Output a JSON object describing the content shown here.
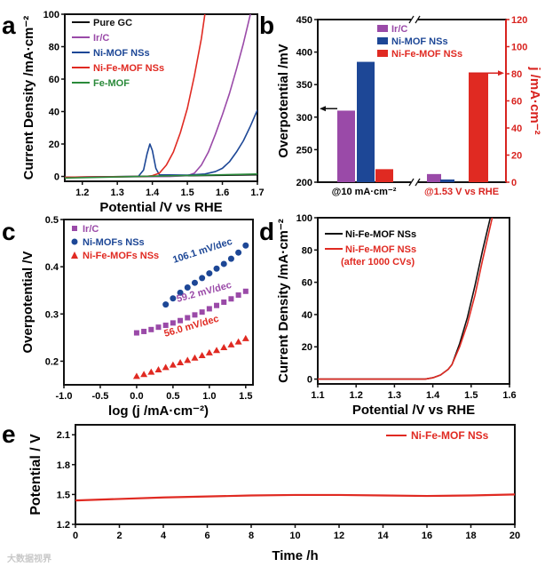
{
  "colors": {
    "black": "#111111",
    "irc": "#9a4aa8",
    "nimof": "#1d4796",
    "nife": "#e02a22",
    "femof": "#2a8a3a",
    "axis_red": "#d8231f"
  },
  "watermark": "大数据视界",
  "chart_data": [
    {
      "panel": "a",
      "type": "line",
      "xlabel": "Potential /V vs RHE",
      "ylabel": "Current Density /mA·cm⁻²",
      "xlim": [
        1.15,
        1.7
      ],
      "ylim": [
        -3,
        100
      ],
      "xticks": [
        1.2,
        1.3,
        1.4,
        1.5,
        1.6,
        1.7
      ],
      "yticks": [
        0,
        20,
        40,
        60,
        80,
        100
      ],
      "legend_position": "top-left",
      "series": [
        {
          "name": "Pure GC",
          "color": "#111111",
          "points": [
            [
              1.15,
              -0.5
            ],
            [
              1.7,
              1
            ]
          ]
        },
        {
          "name": "Ir/C",
          "color": "#9a4aa8",
          "points": [
            [
              1.15,
              -0.5
            ],
            [
              1.45,
              0
            ],
            [
              1.5,
              0.5
            ],
            [
              1.52,
              2
            ],
            [
              1.54,
              7
            ],
            [
              1.56,
              15
            ],
            [
              1.58,
              26
            ],
            [
              1.6,
              38
            ],
            [
              1.62,
              51
            ],
            [
              1.64,
              66
            ],
            [
              1.66,
              82
            ],
            [
              1.68,
              100
            ]
          ]
        },
        {
          "name": "Ni-MOF NSs",
          "color": "#1d4796",
          "points": [
            [
              1.15,
              -0.5
            ],
            [
              1.36,
              0
            ],
            [
              1.375,
              4
            ],
            [
              1.385,
              14
            ],
            [
              1.393,
              20
            ],
            [
              1.4,
              16
            ],
            [
              1.41,
              5
            ],
            [
              1.42,
              1
            ],
            [
              1.5,
              0.8
            ],
            [
              1.55,
              1.5
            ],
            [
              1.58,
              3
            ],
            [
              1.6,
              5
            ],
            [
              1.62,
              9
            ],
            [
              1.64,
              15
            ],
            [
              1.66,
              22
            ],
            [
              1.68,
              31
            ],
            [
              1.7,
              41
            ]
          ]
        },
        {
          "name": "Ni-Fe-MOF NSs",
          "color": "#e02a22",
          "points": [
            [
              1.15,
              -0.5
            ],
            [
              1.38,
              0
            ],
            [
              1.4,
              0.5
            ],
            [
              1.42,
              2
            ],
            [
              1.44,
              7
            ],
            [
              1.46,
              15
            ],
            [
              1.48,
              27
            ],
            [
              1.5,
              42
            ],
            [
              1.52,
              62
            ],
            [
              1.54,
              85
            ],
            [
              1.55,
              100
            ]
          ]
        },
        {
          "name": "Fe-MOF",
          "color": "#2a8a3a",
          "points": [
            [
              1.15,
              -1
            ],
            [
              1.7,
              1.5
            ]
          ]
        }
      ]
    },
    {
      "panel": "b",
      "type": "bar",
      "ylabel": "Overpotential /mV",
      "ylabel_right": "j /mA·cm⁻²",
      "ylim": [
        200,
        450
      ],
      "ylim_right": [
        0,
        120
      ],
      "yticks": [
        200,
        250,
        300,
        350,
        400,
        450
      ],
      "yticks_right": [
        0,
        20,
        40,
        60,
        80,
        100,
        120
      ],
      "categories": [
        "@10 mA·cm⁻²",
        "@1.53 V vs RHE"
      ],
      "legend_position": "top-center",
      "series": [
        {
          "name": "Ir/C",
          "color": "#9a4aa8",
          "overpotential_mV": 310,
          "j_mA_cm2": 6
        },
        {
          "name": "Ni-MOF NSs",
          "color": "#1d4796",
          "overpotential_mV": 385,
          "j_mA_cm2": 2
        },
        {
          "name": "Ni-Fe-MOF NSs",
          "color": "#e02a22",
          "overpotential_mV": 220,
          "j_mA_cm2": 80
        }
      ]
    },
    {
      "panel": "c",
      "type": "scatter",
      "xlabel": "log (j /mA·cm⁻²)",
      "ylabel": "Overpotential /V",
      "xlim": [
        -1.0,
        1.6
      ],
      "ylim": [
        0.15,
        0.5
      ],
      "xticks": [
        -1.0,
        -0.5,
        0.0,
        0.5,
        1.0,
        1.5
      ],
      "yticks": [
        0.2,
        0.3,
        0.4,
        0.5
      ],
      "legend_position": "top-left",
      "series": [
        {
          "name": "Ir/C",
          "marker": "square",
          "color": "#9a4aa8",
          "slope_label": "59.2 mV/dec",
          "x": [
            0,
            0.1,
            0.2,
            0.3,
            0.4,
            0.5,
            0.6,
            0.7,
            0.8,
            0.9,
            1.0,
            1.1,
            1.2,
            1.3,
            1.4,
            1.5
          ],
          "y": [
            0.26,
            0.263,
            0.267,
            0.272,
            0.276,
            0.281,
            0.286,
            0.292,
            0.298,
            0.304,
            0.311,
            0.318,
            0.325,
            0.332,
            0.34,
            0.348
          ]
        },
        {
          "name": "Ni-MOFs NSs",
          "marker": "circle",
          "color": "#1d4796",
          "slope_label": "106.1 mV/dec",
          "x": [
            0.4,
            0.5,
            0.6,
            0.7,
            0.8,
            0.9,
            1.0,
            1.1,
            1.2,
            1.3,
            1.4,
            1.5
          ],
          "y": [
            0.32,
            0.333,
            0.345,
            0.356,
            0.366,
            0.376,
            0.386,
            0.396,
            0.406,
            0.417,
            0.43,
            0.445
          ]
        },
        {
          "name": "Ni-Fe-MOFs NSs",
          "marker": "triangle",
          "color": "#e02a22",
          "slope_label": "56.0 mV/dec",
          "x": [
            0,
            0.1,
            0.2,
            0.3,
            0.4,
            0.5,
            0.6,
            0.7,
            0.8,
            0.9,
            1.0,
            1.1,
            1.2,
            1.3,
            1.4,
            1.5
          ],
          "y": [
            0.168,
            0.172,
            0.177,
            0.182,
            0.187,
            0.192,
            0.197,
            0.202,
            0.207,
            0.212,
            0.218,
            0.223,
            0.229,
            0.235,
            0.241,
            0.248
          ]
        }
      ]
    },
    {
      "panel": "d",
      "type": "line",
      "xlabel": "Potential /V vs RHE",
      "ylabel": "Current Density /mA·cm⁻²",
      "xlim": [
        1.1,
        1.6
      ],
      "ylim": [
        -3,
        100
      ],
      "xticks": [
        1.1,
        1.2,
        1.3,
        1.4,
        1.5,
        1.6
      ],
      "yticks": [
        0,
        20,
        40,
        60,
        80,
        100
      ],
      "legend_position": "top-left",
      "series": [
        {
          "name": "Ni-Fe-MOF NSs",
          "color": "#111111",
          "points": [
            [
              1.1,
              0
            ],
            [
              1.38,
              0
            ],
            [
              1.4,
              0.8
            ],
            [
              1.42,
              2.5
            ],
            [
              1.44,
              6
            ],
            [
              1.45,
              9
            ],
            [
              1.47,
              22
            ],
            [
              1.49,
              38
            ],
            [
              1.51,
              58
            ],
            [
              1.53,
              80
            ],
            [
              1.55,
              100
            ]
          ]
        },
        {
          "name": "Ni-Fe-MOF NSs",
          "name_line2": "(after 1000 CVs)",
          "color": "#e02a22",
          "points": [
            [
              1.1,
              0
            ],
            [
              1.38,
              0
            ],
            [
              1.4,
              0.8
            ],
            [
              1.42,
              2.5
            ],
            [
              1.44,
              6
            ],
            [
              1.45,
              9
            ],
            [
              1.47,
              20
            ],
            [
              1.49,
              34
            ],
            [
              1.51,
              52
            ],
            [
              1.53,
              74
            ],
            [
              1.555,
              100
            ]
          ]
        }
      ]
    },
    {
      "panel": "e",
      "type": "line",
      "xlabel": "Time /h",
      "ylabel": "Potential / V",
      "xlim": [
        0,
        20
      ],
      "ylim": [
        1.2,
        2.2
      ],
      "xticks": [
        0,
        2,
        4,
        6,
        8,
        10,
        12,
        14,
        16,
        18,
        20
      ],
      "yticks": [
        1.2,
        1.5,
        1.8,
        2.1
      ],
      "legend_position": "top-right",
      "series": [
        {
          "name": "Ni-Fe-MOF NSs",
          "color": "#e02a22",
          "points": [
            [
              0,
              1.44
            ],
            [
              2,
              1.455
            ],
            [
              4,
              1.47
            ],
            [
              6,
              1.48
            ],
            [
              8,
              1.49
            ],
            [
              10,
              1.495
            ],
            [
              12,
              1.495
            ],
            [
              14,
              1.49
            ],
            [
              16,
              1.485
            ],
            [
              18,
              1.49
            ],
            [
              20,
              1.5
            ]
          ]
        }
      ]
    }
  ]
}
